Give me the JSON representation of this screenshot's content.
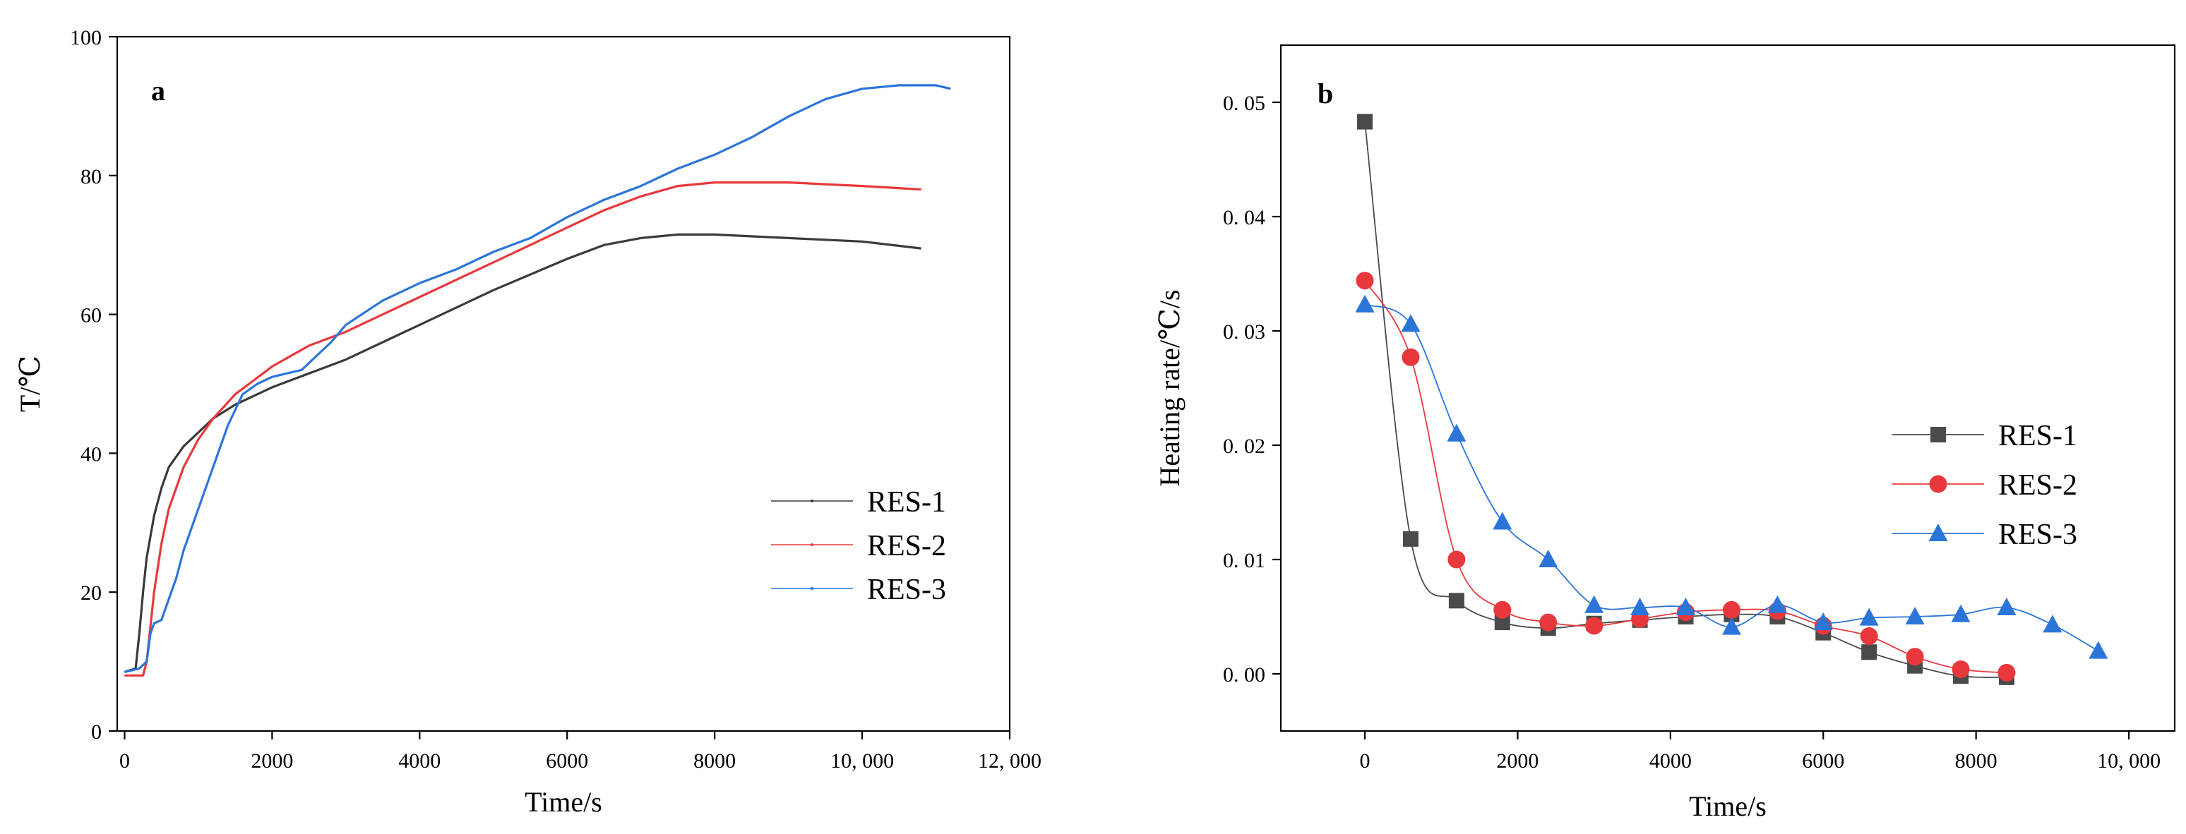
{
  "chart_data": [
    {
      "type": "line",
      "panel_label": "a",
      "xlabel": "Time/s",
      "ylabel": "T/℃",
      "xlim": [
        -100,
        12000
      ],
      "ylim": [
        0,
        100
      ],
      "xticks": [
        {
          "v": 0,
          "label": "0"
        },
        {
          "v": 2000,
          "label": "2000"
        },
        {
          "v": 4000,
          "label": "4000"
        },
        {
          "v": 6000,
          "label": "6000"
        },
        {
          "v": 8000,
          "label": "8000"
        },
        {
          "v": 10000,
          "label": "10, 000"
        },
        {
          "v": 12000,
          "label": "12, 000"
        }
      ],
      "yticks": [
        {
          "v": 0,
          "label": "0"
        },
        {
          "v": 20,
          "label": "20"
        },
        {
          "v": 40,
          "label": "40"
        },
        {
          "v": 60,
          "label": "60"
        },
        {
          "v": 80,
          "label": "80"
        },
        {
          "v": 100,
          "label": "100"
        }
      ],
      "legend_position": "center-right",
      "series": [
        {
          "name": "RES-1",
          "color": "#3a3a3a",
          "x": [
            0,
            150,
            200,
            250,
            300,
            400,
            500,
            600,
            800,
            1000,
            1200,
            1500,
            2000,
            2500,
            3000,
            3500,
            4000,
            5000,
            6000,
            6500,
            7000,
            7500,
            8000,
            9000,
            10000,
            10800
          ],
          "y": [
            8.5,
            9,
            14,
            20,
            25,
            31,
            35,
            38,
            41,
            43,
            45,
            47,
            49.5,
            51.5,
            53.5,
            56,
            58.5,
            63.5,
            68,
            70,
            71,
            71.5,
            71.5,
            71,
            70.5,
            69.5
          ]
        },
        {
          "name": "RES-2",
          "color": "#e8383c",
          "x": [
            0,
            250,
            300,
            350,
            400,
            500,
            600,
            800,
            1000,
            1200,
            1500,
            2000,
            2500,
            3000,
            3500,
            4000,
            5000,
            6000,
            6500,
            7000,
            7500,
            8000,
            8500,
            9000,
            10000,
            10800
          ],
          "y": [
            8,
            8,
            10,
            15,
            20,
            27,
            32,
            38,
            42,
            45,
            48.5,
            52.5,
            55.5,
            57.5,
            60,
            62.5,
            67.5,
            72.5,
            75,
            77,
            78.5,
            79,
            79,
            79,
            78.5,
            78
          ]
        },
        {
          "name": "RES-3",
          "color": "#2b75d9",
          "x": [
            0,
            200,
            300,
            350,
            400,
            500,
            600,
            700,
            800,
            1000,
            1200,
            1400,
            1600,
            1800,
            2000,
            2200,
            2400,
            2600,
            2800,
            3000,
            3500,
            4000,
            4500,
            5000,
            5500,
            6000,
            6500,
            7000,
            7500,
            8000,
            8500,
            9000,
            9500,
            10000,
            10500,
            11000,
            11200
          ],
          "y": [
            8.5,
            9,
            10,
            14,
            15.5,
            16,
            19,
            22,
            26,
            32,
            38,
            44,
            48.5,
            50,
            51,
            51.5,
            52,
            54,
            56,
            58.5,
            62,
            64.5,
            66.5,
            69,
            71,
            74,
            76.5,
            78.5,
            81,
            83,
            85.5,
            88.5,
            91,
            92.5,
            93,
            93,
            92.5
          ]
        }
      ]
    },
    {
      "type": "line",
      "panel_label": "b",
      "xlabel": "Time/s",
      "ylabel": "Heating rate/℃/s",
      "xlim": [
        -1100,
        10600
      ],
      "ylim": [
        -0.005,
        0.055
      ],
      "xticks": [
        {
          "v": 0,
          "label": "0"
        },
        {
          "v": 2000,
          "label": "2000"
        },
        {
          "v": 4000,
          "label": "4000"
        },
        {
          "v": 6000,
          "label": "6000"
        },
        {
          "v": 8000,
          "label": "8000"
        },
        {
          "v": 10000,
          "label": "10, 000"
        }
      ],
      "yticks": [
        {
          "v": 0.0,
          "label": "0. 00"
        },
        {
          "v": 0.01,
          "label": "0. 01"
        },
        {
          "v": 0.02,
          "label": "0. 02"
        },
        {
          "v": 0.03,
          "label": "0. 03"
        },
        {
          "v": 0.04,
          "label": "0. 04"
        },
        {
          "v": 0.05,
          "label": "0. 05"
        }
      ],
      "legend_position": "center-right",
      "series": [
        {
          "name": "RES-1",
          "color": "#4a4a4a",
          "marker": "square",
          "x": [
            0,
            600,
            1200,
            1800,
            2400,
            3000,
            3600,
            4200,
            4800,
            5400,
            6000,
            6600,
            7200,
            7800,
            8400
          ],
          "y": [
            0.0483,
            0.0118,
            0.0064,
            0.0045,
            0.004,
            0.0044,
            0.0047,
            0.005,
            0.0052,
            0.005,
            0.0036,
            0.0019,
            0.0007,
            -0.0002,
            -0.0003
          ]
        },
        {
          "name": "RES-2",
          "color": "#e8383c",
          "marker": "circle",
          "x": [
            0,
            600,
            1200,
            1800,
            2400,
            3000,
            3600,
            4200,
            4800,
            5400,
            6000,
            6600,
            7200,
            7800,
            8400
          ],
          "y": [
            0.0344,
            0.0277,
            0.01,
            0.0056,
            0.0045,
            0.0042,
            0.0048,
            0.0054,
            0.0056,
            0.0055,
            0.0042,
            0.0033,
            0.0015,
            0.0004,
            0.0001
          ]
        },
        {
          "name": "RES-3",
          "color": "#2b75d9",
          "marker": "triangle",
          "x": [
            0,
            600,
            1200,
            1800,
            2400,
            3000,
            3600,
            4200,
            4800,
            5400,
            6000,
            6600,
            7200,
            7800,
            8400,
            9000,
            9600
          ],
          "y": [
            0.0323,
            0.0306,
            0.021,
            0.0133,
            0.01,
            0.006,
            0.0058,
            0.0058,
            0.0041,
            0.006,
            0.0045,
            0.0049,
            0.005,
            0.0052,
            0.0058,
            0.0043,
            0.002
          ]
        }
      ]
    }
  ]
}
